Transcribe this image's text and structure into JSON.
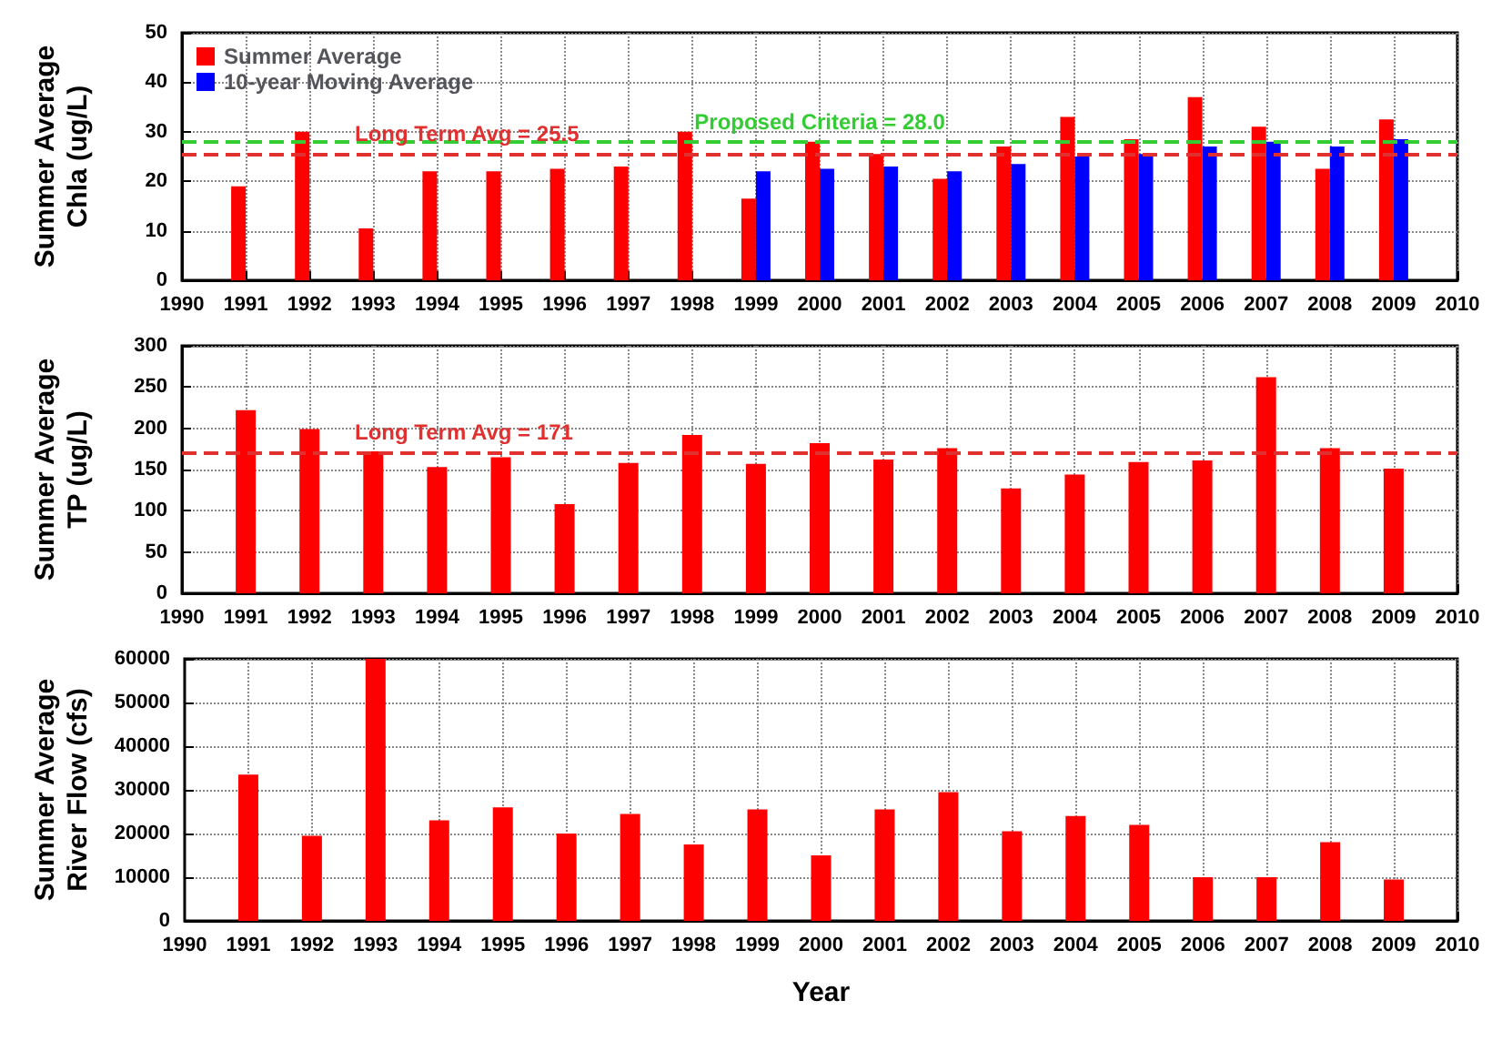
{
  "chart_data": [
    {
      "type": "bar",
      "ylabel": "Summer Average\nChla (ug/L)",
      "x": [
        1991,
        1992,
        1993,
        1994,
        1995,
        1996,
        1997,
        1998,
        1999,
        2000,
        2001,
        2002,
        2003,
        2004,
        2005,
        2006,
        2007,
        2008,
        2009
      ],
      "xlim": [
        1990,
        2010
      ],
      "xticks": [
        1990,
        1991,
        1992,
        1993,
        1994,
        1995,
        1996,
        1997,
        1998,
        1999,
        2000,
        2001,
        2002,
        2003,
        2004,
        2005,
        2006,
        2007,
        2008,
        2009,
        2010
      ],
      "ylim": [
        0,
        50
      ],
      "yticks": [
        0,
        10,
        20,
        30,
        40,
        50
      ],
      "grid": true,
      "legend": "top left",
      "series": [
        {
          "name": "Summer Average",
          "color": "#ff0000",
          "values": [
            19,
            30,
            10.5,
            22,
            22,
            22.5,
            23,
            30,
            16.5,
            28,
            25.5,
            20.5,
            27,
            33,
            28.5,
            37,
            31,
            22.5,
            32.5
          ]
        },
        {
          "name": "10-year Moving Average",
          "color": "#0000ff",
          "x": [
            1999,
            2000,
            2001,
            2002,
            2003,
            2004,
            2005,
            2006,
            2007,
            2008,
            2009
          ],
          "values": [
            22,
            22.5,
            23,
            22,
            23.5,
            25,
            25.5,
            27,
            28,
            27,
            28.5
          ]
        }
      ],
      "ref_lines": [
        {
          "axis": "y",
          "value": 25.5,
          "label": "Long Term Avg = 25.5",
          "color": "#e03030",
          "line_style": "dashed"
        },
        {
          "axis": "y",
          "value": 28,
          "label": "Proposed Criteria = 28.0",
          "color": "#33cc33",
          "line_style": "dashed"
        }
      ]
    },
    {
      "type": "bar",
      "ylabel": "Summer Average\nTP (ug/L)",
      "x": [
        1991,
        1992,
        1993,
        1994,
        1995,
        1996,
        1997,
        1998,
        1999,
        2000,
        2001,
        2002,
        2003,
        2004,
        2005,
        2006,
        2007,
        2008,
        2009
      ],
      "xlim": [
        1990,
        2010
      ],
      "xticks": [
        1990,
        1991,
        1992,
        1993,
        1994,
        1995,
        1996,
        1997,
        1998,
        1999,
        2000,
        2001,
        2002,
        2003,
        2004,
        2005,
        2006,
        2007,
        2008,
        2009,
        2010
      ],
      "ylim": [
        0,
        300
      ],
      "yticks": [
        0,
        50,
        100,
        150,
        200,
        250,
        300
      ],
      "grid": true,
      "series": [
        {
          "color": "#ff0000",
          "values": [
            222,
            199,
            172,
            153,
            165,
            108,
            158,
            192,
            157,
            182,
            162,
            176,
            127,
            144,
            159,
            161,
            262,
            176,
            151
          ]
        }
      ],
      "ref_lines": [
        {
          "axis": "y",
          "value": 171,
          "label": "Long Term Avg = 171",
          "color": "#e03030",
          "line_style": "dashed"
        }
      ]
    },
    {
      "type": "bar",
      "ylabel": "Summer Average\nRiver Flow (cfs)",
      "xlabel": "Year",
      "x": [
        1991,
        1992,
        1993,
        1994,
        1995,
        1996,
        1997,
        1998,
        1999,
        2000,
        2001,
        2002,
        2003,
        2004,
        2005,
        2006,
        2007,
        2008,
        2009
      ],
      "xlim": [
        1990,
        2010
      ],
      "xticks": [
        1990,
        1991,
        1992,
        1993,
        1994,
        1995,
        1996,
        1997,
        1998,
        1999,
        2000,
        2001,
        2002,
        2003,
        2004,
        2005,
        2006,
        2007,
        2008,
        2009,
        2010
      ],
      "ylim": [
        0,
        60000
      ],
      "yticks": [
        0,
        10000,
        20000,
        30000,
        40000,
        50000,
        60000
      ],
      "grid": true,
      "series": [
        {
          "color": "#ff0000",
          "values": [
            33500,
            19500,
            60000,
            23000,
            26000,
            20000,
            24500,
            17500,
            25500,
            15000,
            25500,
            29500,
            20500,
            24000,
            22000,
            10000,
            10000,
            18000,
            9500
          ]
        }
      ]
    }
  ]
}
